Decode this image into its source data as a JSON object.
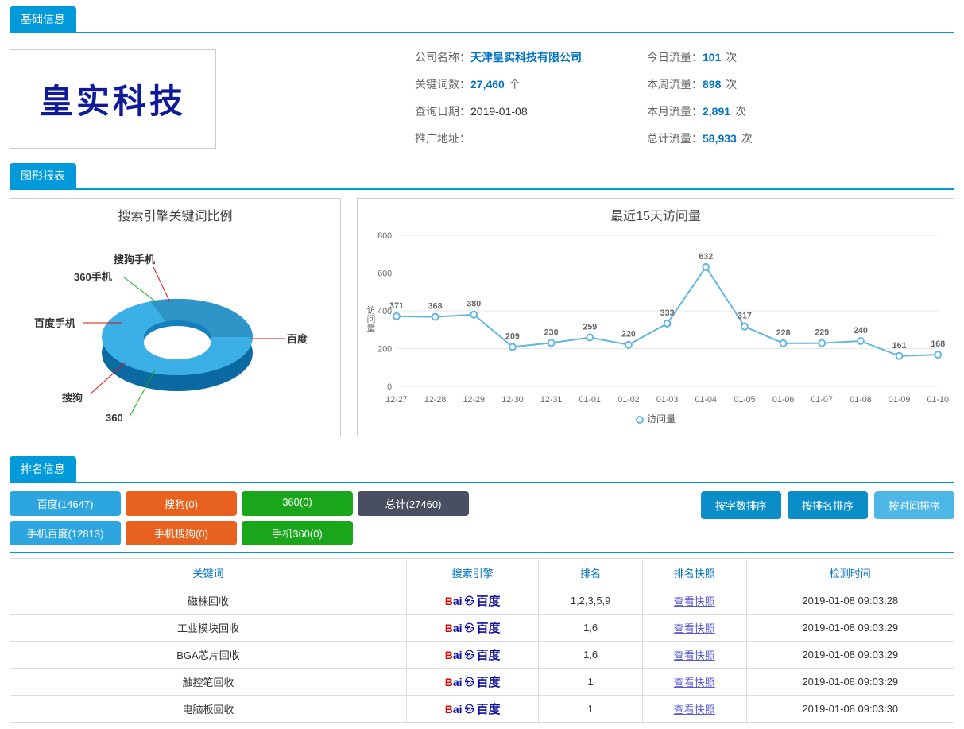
{
  "accent_color": "#0099d9",
  "link_color": "#0073c4",
  "sections": {
    "base": "基础信息",
    "charts": "图形报表",
    "rank": "排名信息"
  },
  "logo_text": "皇实科技",
  "logo_text_color": "#0f1a9a",
  "info_left": [
    {
      "label": "公司名称：",
      "value": "天津皇实科技有限公司",
      "blue": true,
      "unit": ""
    },
    {
      "label": "关键词数：",
      "value": "27,460",
      "blue": true,
      "unit": " 个"
    },
    {
      "label": "查询日期：",
      "value": "2019-01-08",
      "blue": false,
      "unit": ""
    },
    {
      "label": "推广地址：",
      "value": "",
      "blue": false,
      "unit": ""
    }
  ],
  "info_right": [
    {
      "label": "今日流量：",
      "value": "101",
      "blue": true,
      "unit": " 次"
    },
    {
      "label": "本周流量：",
      "value": "898",
      "blue": true,
      "unit": " 次"
    },
    {
      "label": "本月流量：",
      "value": "2,891",
      "blue": true,
      "unit": " 次"
    },
    {
      "label": "总计流量：",
      "value": "58,933",
      "blue": true,
      "unit": " 次"
    }
  ],
  "donut": {
    "title": "搜索引擎关键词比例",
    "labels": [
      "搜狗手机",
      "360手机",
      "百度手机",
      "搜狗",
      "360",
      "百度"
    ],
    "colors": {
      "outer": "#2f95c9",
      "inner": "#0c6aa3",
      "top": "#3bb0e6",
      "top_inner": "#1580bd"
    },
    "leader_colors": [
      "#d11",
      "#1a1",
      "#d11",
      "#d11",
      "#1a1",
      "#d11"
    ]
  },
  "line": {
    "title": "最近15天访问量",
    "ylabel": "访问量",
    "legend": "访问量",
    "color": "#60b6e2",
    "grid_color": "#e8e8e8",
    "xticks": [
      "12-27",
      "12-28",
      "12-29",
      "12-30",
      "12-31",
      "01-01",
      "01-02",
      "01-03",
      "01-04",
      "01-05",
      "01-06",
      "01-07",
      "01-08",
      "01-09",
      "01-10"
    ],
    "yticks": [
      0,
      200,
      400,
      600,
      800
    ],
    "values": [
      371,
      368,
      380,
      209,
      230,
      259,
      220,
      333,
      632,
      317,
      228,
      229,
      240,
      161,
      168
    ],
    "ymax": 800
  },
  "pills_row1": [
    {
      "label": "百度(14647)",
      "cls": "pill-blue"
    },
    {
      "label": "搜狗(0)",
      "cls": "pill-orange"
    },
    {
      "label": "360(0)",
      "cls": "pill-green"
    },
    {
      "label": "总计(27460)",
      "cls": "pill-dark"
    }
  ],
  "pills_row2": [
    {
      "label": "手机百度(12813)",
      "cls": "pill-blue"
    },
    {
      "label": "手机搜狗(0)",
      "cls": "pill-orange"
    },
    {
      "label": "手机360(0)",
      "cls": "pill-green"
    }
  ],
  "sort_buttons": [
    {
      "label": "按字数排序",
      "cls": ""
    },
    {
      "label": "按排名排序",
      "cls": ""
    },
    {
      "label": "按时间排序",
      "cls": "light"
    }
  ],
  "table": {
    "headers": [
      "关键词",
      "搜索引擎",
      "排名",
      "排名快照",
      "检测时间"
    ],
    "snapshot_text": "查看快照",
    "col_widths": [
      "42%",
      "14%",
      "11%",
      "11%",
      "22%"
    ],
    "rows": [
      {
        "kw": "磁株回收",
        "rank": "1,2,3,5,9",
        "time": "2019-01-08 09:03:28"
      },
      {
        "kw": "工业模块回收",
        "rank": "1,6",
        "time": "2019-01-08 09:03:29"
      },
      {
        "kw": "BGA芯片回收",
        "rank": "1,6",
        "time": "2019-01-08 09:03:29"
      },
      {
        "kw": "触控笔回收",
        "rank": "1",
        "time": "2019-01-08 09:03:29"
      },
      {
        "kw": "电脑板回收",
        "rank": "1",
        "time": "2019-01-08 09:03:30"
      }
    ]
  }
}
